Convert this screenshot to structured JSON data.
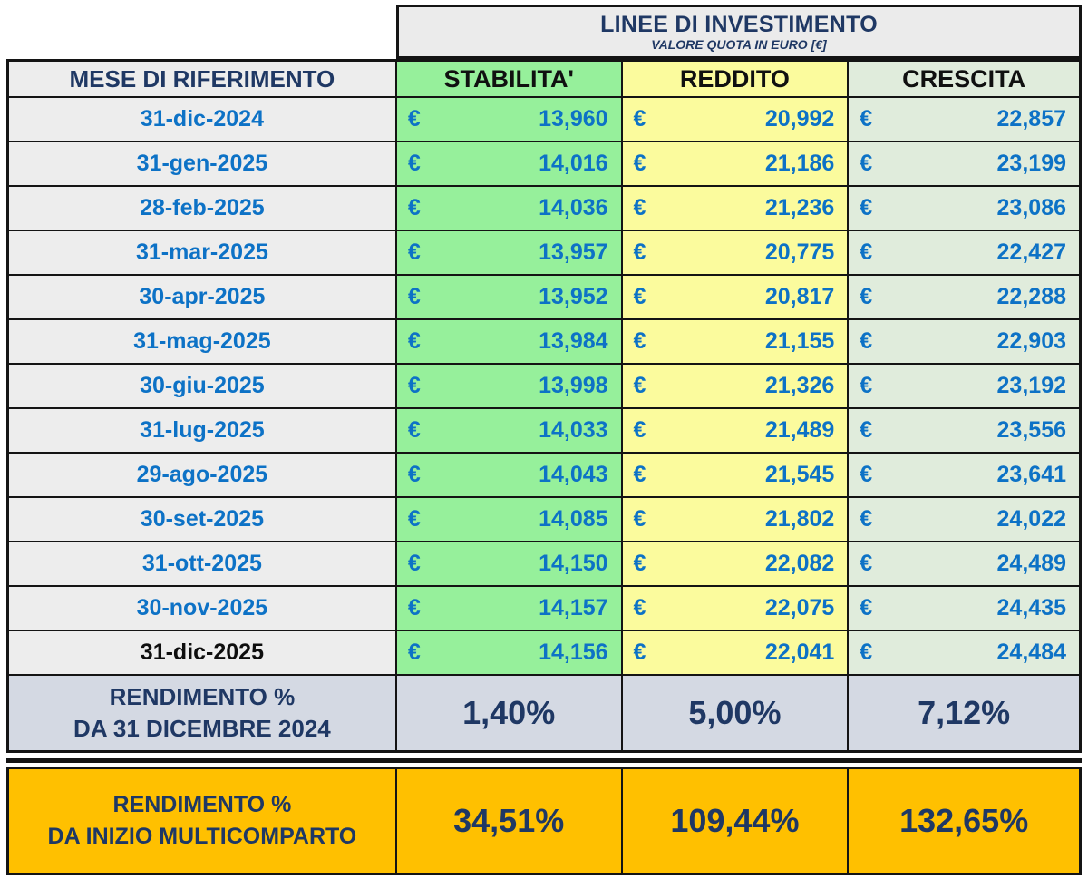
{
  "header": {
    "title": "LINEE DI INVESTIMENTO",
    "subtitle": "VALORE QUOTA IN EURO [€]"
  },
  "columns": {
    "month_label": "MESE DI RIFERIMENTO",
    "lines": [
      {
        "name": "STABILITA'",
        "color": "#96F09B"
      },
      {
        "name": "REDDITO",
        "color": "#FBFB9D"
      },
      {
        "name": "CRESCITA",
        "color": "#E0ECDC"
      }
    ]
  },
  "currency_symbol": "€",
  "rows": [
    {
      "date": "31-dic-2024",
      "values": [
        "13,960",
        "20,992",
        "22,857"
      ]
    },
    {
      "date": "31-gen-2025",
      "values": [
        "14,016",
        "21,186",
        "23,199"
      ]
    },
    {
      "date": "28-feb-2025",
      "values": [
        "14,036",
        "21,236",
        "23,086"
      ]
    },
    {
      "date": "31-mar-2025",
      "values": [
        "13,957",
        "20,775",
        "22,427"
      ]
    },
    {
      "date": "30-apr-2025",
      "values": [
        "13,952",
        "20,817",
        "22,288"
      ]
    },
    {
      "date": "31-mag-2025",
      "values": [
        "13,984",
        "21,155",
        "22,903"
      ]
    },
    {
      "date": "30-giu-2025",
      "values": [
        "13,998",
        "21,326",
        "23,192"
      ]
    },
    {
      "date": "31-lug-2025",
      "values": [
        "14,033",
        "21,489",
        "23,556"
      ]
    },
    {
      "date": "29-ago-2025",
      "values": [
        "14,043",
        "21,545",
        "23,641"
      ]
    },
    {
      "date": "30-set-2025",
      "values": [
        "14,085",
        "21,802",
        "24,022"
      ]
    },
    {
      "date": "31-ott-2025",
      "values": [
        "14,150",
        "22,082",
        "24,489"
      ]
    },
    {
      "date": "30-nov-2025",
      "values": [
        "14,157",
        "22,075",
        "24,435"
      ]
    },
    {
      "date": "31-dic-2025",
      "values": [
        "14,156",
        "22,041",
        "24,484"
      ]
    }
  ],
  "ytd": {
    "label_line1": "RENDIMENTO %",
    "label_line2": "DA 31 DICEMBRE 2024",
    "values": [
      "1,40%",
      "5,00%",
      "7,12%"
    ]
  },
  "inception": {
    "label_line1": "RENDIMENTO %",
    "label_line2": "DA INIZIO MULTICOMPARTO",
    "values": [
      "34,51%",
      "109,44%",
      "132,65%"
    ]
  },
  "colors": {
    "navy_text": "#1F3864",
    "blue_text": "#0D72C6",
    "stabilita_fill": "#96F09B",
    "reddito_fill": "#FBFB9D",
    "crescita_fill": "#E0ECDC",
    "month_fill": "#EDEDED",
    "ytd_fill": "#D4D9E3",
    "inception_fill": "#FFC000"
  },
  "chart_data": {
    "type": "table",
    "title": "LINEE DI INVESTIMENTO",
    "subtitle": "VALORE QUOTA IN EURO [€]",
    "categories": [
      "31-dic-2024",
      "31-gen-2025",
      "28-feb-2025",
      "31-mar-2025",
      "30-apr-2025",
      "31-mag-2025",
      "30-giu-2025",
      "31-lug-2025",
      "29-ago-2025",
      "30-set-2025",
      "31-ott-2025",
      "30-nov-2025",
      "31-dic-2025"
    ],
    "series": [
      {
        "name": "STABILITA'",
        "values": [
          13.96,
          14.016,
          14.036,
          13.957,
          13.952,
          13.984,
          13.998,
          14.033,
          14.043,
          14.085,
          14.15,
          14.157,
          14.156
        ]
      },
      {
        "name": "REDDITO",
        "values": [
          20.992,
          21.186,
          21.236,
          20.775,
          20.817,
          21.155,
          21.326,
          21.489,
          21.545,
          21.802,
          22.082,
          22.075,
          22.041
        ]
      },
      {
        "name": "CRESCITA",
        "values": [
          22.857,
          23.199,
          23.086,
          22.427,
          22.288,
          22.903,
          23.192,
          23.556,
          23.641,
          24.022,
          24.489,
          24.435,
          24.484
        ]
      }
    ],
    "ytd_return_pct": {
      "label": "RENDIMENTO % DA 31 DICEMBRE 2024",
      "STABILITA'": 1.4,
      "REDDITO": 5.0,
      "CRESCITA": 7.12
    },
    "inception_return_pct": {
      "label": "RENDIMENTO % DA INIZIO MULTICOMPARTO",
      "STABILITA'": 34.51,
      "REDDITO": 109.44,
      "CRESCITA": 132.65
    }
  }
}
